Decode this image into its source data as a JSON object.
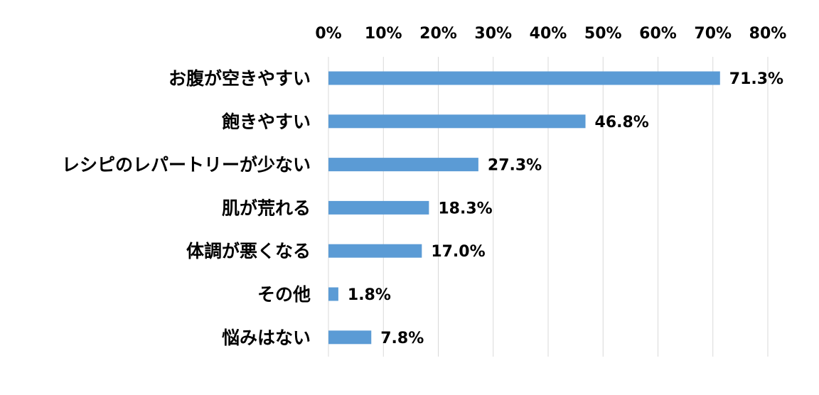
{
  "chart_data": {
    "type": "bar",
    "orientation": "horizontal",
    "categories": [
      "お腹が空きやすい",
      "飽きやすい",
      "レシピのレパートリーが少ない",
      "肌が荒れる",
      "体調が悪くなる",
      "その他",
      "悩みはない"
    ],
    "values": [
      71.3,
      46.8,
      27.3,
      18.3,
      17.0,
      1.8,
      7.8
    ],
    "data_labels": [
      "71.3%",
      "46.8%",
      "27.3%",
      "18.3%",
      "17.0%",
      "1.8%",
      "7.8%"
    ],
    "x_ticks": [
      "0%",
      "10%",
      "20%",
      "30%",
      "40%",
      "50%",
      "60%",
      "70%",
      "80%"
    ],
    "xlim": [
      0,
      80
    ],
    "x_axis_position": "top",
    "grid": true,
    "bar_color": "#5b9bd5",
    "gridline_color": "#d9d9d9",
    "title": "",
    "xlabel": "",
    "ylabel": ""
  }
}
